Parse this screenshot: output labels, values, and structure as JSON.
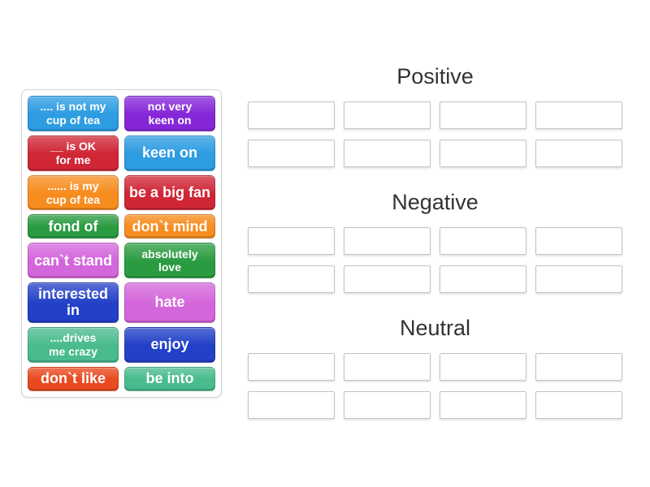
{
  "activity": {
    "groups": [
      {
        "title": "Positive",
        "slot_count": 8
      },
      {
        "title": "Negative",
        "slot_count": 8
      },
      {
        "title": "Neutral",
        "slot_count": 8
      }
    ],
    "tiles": [
      {
        "label": ".... is not my\ncup of tea",
        "color": "#2d9ce1"
      },
      {
        "label": "not very\nkeen on",
        "color": "#8527d8"
      },
      {
        "label": "__ is OK\nfor me",
        "color": "#d02636"
      },
      {
        "label": "keen on",
        "color": "#2d9ce1"
      },
      {
        "label": "...... is my\ncup of tea",
        "color": "#f78d1e"
      },
      {
        "label": "be a big fan",
        "color": "#d02636"
      },
      {
        "label": "fond of",
        "color": "#2b9b41"
      },
      {
        "label": "don`t mind",
        "color": "#f78d1e"
      },
      {
        "label": "can`t stand",
        "color": "#d466dc"
      },
      {
        "label": "absolutely\nlove",
        "color": "#2b9b41"
      },
      {
        "label": "interested in",
        "color": "#2240c8"
      },
      {
        "label": "hate",
        "color": "#d466dc"
      },
      {
        "label": "....drives\nme crazy",
        "color": "#49bb8d"
      },
      {
        "label": "enjoy",
        "color": "#2240c8"
      },
      {
        "label": "don`t like",
        "color": "#e94a20"
      },
      {
        "label": "be into",
        "color": "#49bb8d"
      }
    ]
  },
  "colors": {
    "page_bg": "#ffffff",
    "title_text": "#333333",
    "slot_border": "#c2c2c2",
    "panel_border": "#d4d4d4",
    "tile_text": "#ffffff"
  }
}
